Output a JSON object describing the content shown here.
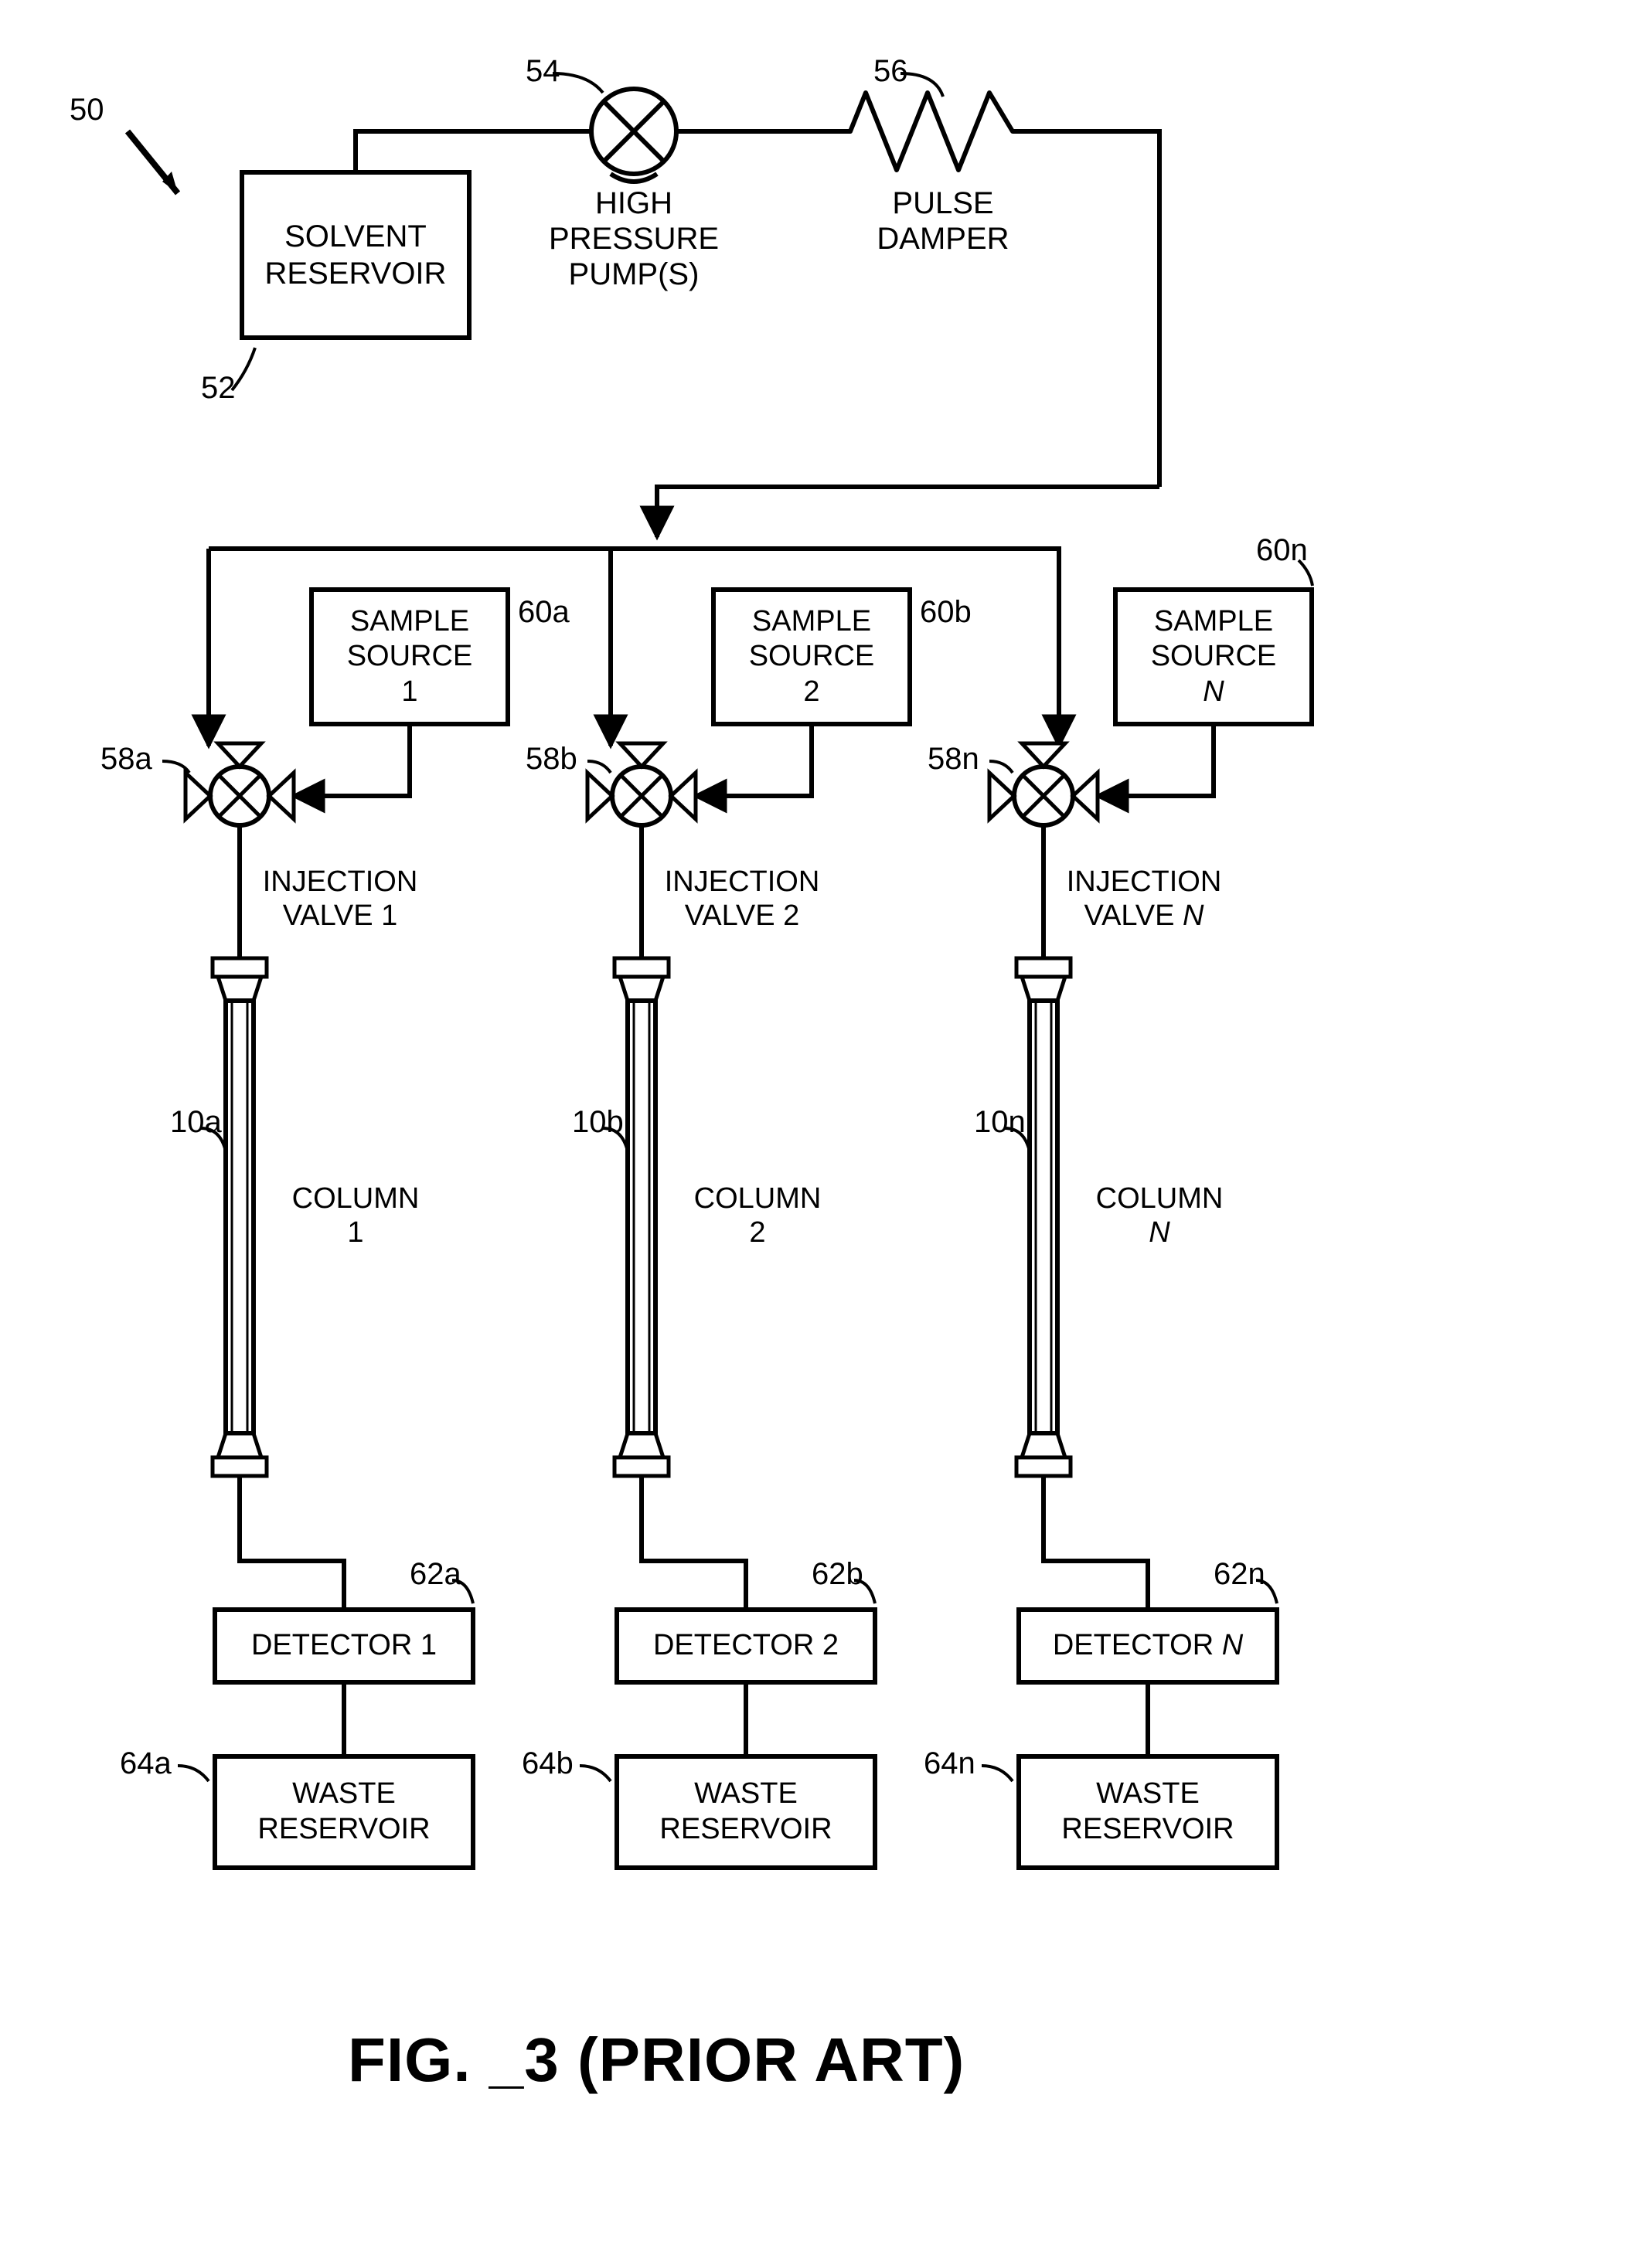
{
  "figure": {
    "caption": "FIG. _3 (PRIOR ART)",
    "caption_fontsize": 80,
    "ref_main": "50",
    "colors": {
      "stroke": "#000000",
      "background": "#ffffff"
    },
    "line_width_box": 6,
    "line_width_wire": 6,
    "font_family": "Arial, Helvetica, sans-serif"
  },
  "top": {
    "solvent": {
      "label": "SOLVENT\nRESERVOIR",
      "ref": "52",
      "fontsize": 40
    },
    "pump": {
      "label": "HIGH\nPRESSURE\nPUMP(S)",
      "ref": "54",
      "fontsize": 40
    },
    "damper": {
      "label": "PULSE\nDAMPER",
      "ref": "56",
      "fontsize": 40
    }
  },
  "channels": [
    {
      "sample": {
        "label": "SAMPLE\nSOURCE\n1",
        "ref": "60a"
      },
      "valve": {
        "label": "INJECTION\nVALVE 1",
        "ref": "58a"
      },
      "column": {
        "label": "COLUMN\n1",
        "ref": "10a"
      },
      "detector": {
        "label": "DETECTOR 1",
        "ref": "62a"
      },
      "waste": {
        "label": "WASTE\nRESERVOIR",
        "ref": "64a"
      }
    },
    {
      "sample": {
        "label": "SAMPLE\nSOURCE\n2",
        "ref": "60b"
      },
      "valve": {
        "label": "INJECTION\nVALVE 2",
        "ref": "58b"
      },
      "column": {
        "label": "COLUMN\n2",
        "ref": "10b"
      },
      "detector": {
        "label": "DETECTOR 2",
        "ref": "62b"
      },
      "waste": {
        "label": "WASTE\nRESERVOIR",
        "ref": "64b"
      }
    },
    {
      "sample": {
        "label": "SAMPLE\nSOURCE\nN",
        "ref": "60n",
        "italic_last": true
      },
      "valve": {
        "label": "INJECTION\nVALVE N",
        "ref": "58n",
        "italic_last": true
      },
      "column": {
        "label": "COLUMN\nN",
        "ref": "10n",
        "italic_last": true
      },
      "detector": {
        "label": "DETECTOR N",
        "ref": "62n",
        "italic_last": true
      },
      "waste": {
        "label": "WASTE\nRESERVOIR",
        "ref": "64n"
      }
    }
  ],
  "layout": {
    "channel_x": [
      270,
      790,
      1310
    ],
    "channel_spacing": 520,
    "sample_w": 260,
    "sample_h": 180,
    "detector_w": 340,
    "detector_h": 100,
    "waste_w": 340,
    "waste_h": 150,
    "column_h": 560,
    "label_fontsize": 38
  }
}
